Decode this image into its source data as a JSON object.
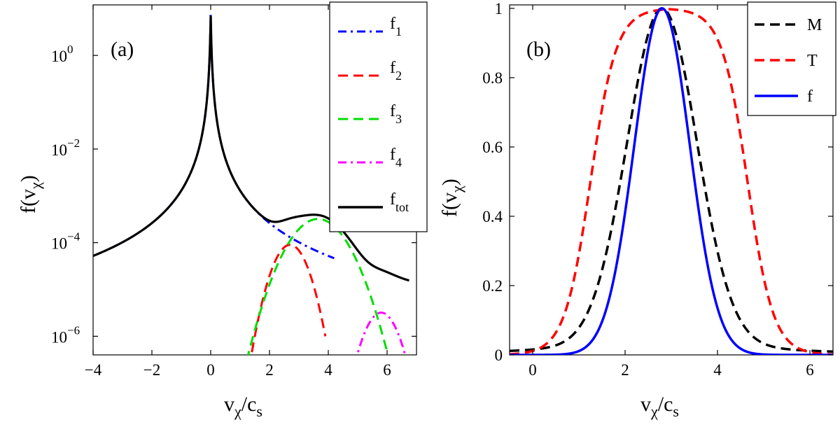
{
  "chart_data": [
    {
      "panel": "(a)",
      "type": "line",
      "yscale": "log",
      "xlim": [
        -4,
        7
      ],
      "ylim": [
        4e-07,
        12
      ],
      "xticks": [
        -4,
        -2,
        0,
        2,
        4,
        6
      ],
      "xtick_labels": [
        "−4",
        "−2",
        "0",
        "2",
        "4",
        "6"
      ],
      "yticks": [
        1e-06,
        0.0001,
        0.01,
        1
      ],
      "ytick_labels": [
        {
          "base": "10",
          "exp": "−6"
        },
        {
          "base": "10",
          "exp": "−4"
        },
        {
          "base": "10",
          "exp": "−2"
        },
        {
          "base": "10",
          "exp": "0"
        }
      ],
      "xlabel": {
        "main": "v",
        "sub1": "χ",
        "sep": "/c",
        "sub2": "s"
      },
      "ylabel": {
        "pre": "f(v",
        "sub": "χ",
        "post": ")"
      },
      "legend_position": "top-right",
      "series": [
        {
          "name": "f1",
          "label_main": "f",
          "label_sub": "1",
          "color": "#0000ff",
          "dash": "dashdot",
          "components": [
            {
              "amp": 8.0,
              "center": 0.0,
              "scale": 0.22
            }
          ],
          "xrange": [
            -4,
            4.2
          ]
        },
        {
          "name": "f2",
          "label_main": "f",
          "label_sub": "2",
          "color": "#ff0000",
          "dash": "dashed",
          "components": [
            {
              "amp": 9e-05,
              "center": 2.7,
              "sigma": 0.4
            }
          ],
          "xrange": [
            1.4,
            3.9
          ]
        },
        {
          "name": "f3",
          "label_main": "f",
          "label_sub": "3",
          "color": "#00dd00",
          "dash": "dashed",
          "components": [
            {
              "amp": 0.00032,
              "center": 3.65,
              "sigma": 0.65
            }
          ],
          "xrange": [
            1.1,
            6.3
          ]
        },
        {
          "name": "f4",
          "label_main": "f",
          "label_sub": "4",
          "color": "#ff00ff",
          "dash": "dashdot",
          "components": [
            {
              "amp": 3.2e-06,
              "center": 5.8,
              "sigma": 0.4
            }
          ],
          "xrange": [
            4.75,
            6.75
          ]
        },
        {
          "name": "f_tot",
          "label_main": "f",
          "label_sub": "tot",
          "color": "#000000",
          "dash": "solid",
          "sum_of": [
            "f1",
            "f2",
            "f3",
            "f4"
          ],
          "xrange": [
            -4,
            6.75
          ]
        }
      ]
    },
    {
      "panel": "(b)",
      "type": "line",
      "yscale": "linear",
      "xlim": [
        -0.5,
        6.5
      ],
      "ylim": [
        0,
        1.01
      ],
      "xticks": [
        0,
        2,
        4,
        6
      ],
      "xtick_labels": [
        "0",
        "2",
        "4",
        "6"
      ],
      "yticks": [
        0,
        0.2,
        0.4,
        0.6,
        0.8,
        1.0
      ],
      "ytick_labels": [
        "0",
        "0.2",
        "0.4",
        "0.6",
        "0.8",
        "1"
      ],
      "xlabel": {
        "main": "v",
        "sub1": "χ",
        "sep": "/c",
        "sub2": "s"
      },
      "ylabel": {
        "pre": "f(v",
        "sub": "χ",
        "post": ")"
      },
      "legend_position": "top-right",
      "series": [
        {
          "name": "M",
          "label_main": "M",
          "label_sub": "",
          "color": "#000000",
          "dash": "dashed",
          "center": 2.8,
          "width": 0.75,
          "tail": 0.05,
          "tail_width": 0.45
        },
        {
          "name": "T",
          "label_main": "T",
          "label_sub": "",
          "color": "#ff0000",
          "dash": "dashed",
          "center": 2.95,
          "halfwidth": 1.7,
          "edge": 0.28
        },
        {
          "name": "f",
          "label_main": "f",
          "label_sub": "",
          "color": "#0000ff",
          "dash": "solid",
          "center": 2.8,
          "sigma": 0.6
        }
      ]
    }
  ]
}
